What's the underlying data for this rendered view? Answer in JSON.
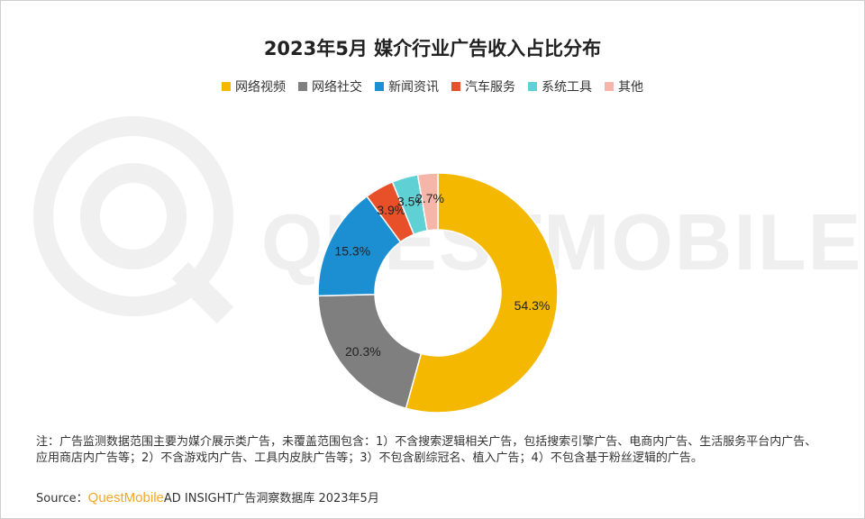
{
  "note": "注：广告监测数据范围主要为媒介展示类广告，未覆盖范围包含：1）不含搜索逻辑相关广告，包括搜索引擎广告、电商内广告、生活服务平台内广告、应用商店内广告等；2）不含游戏内广告、工具内皮肤广告等；3）不包含剧综冠名、植入广告；4）不包含基于粉丝逻辑的广告。",
  "source": {
    "prefix": "Source：",
    "brand": "QuestMobile",
    "suffix": " AD INSIGHT广告洞察数据库 2023年5月"
  },
  "watermark": {
    "text": "QUESTMOBILE"
  },
  "chart_data": {
    "type": "pie",
    "donut": true,
    "title": "2023年5月 媒介行业广告收入占比分布",
    "legend_position": "top",
    "unit": "%",
    "categories": [
      "网络视频",
      "网络社交",
      "新闻资讯",
      "汽车服务",
      "系统工具",
      "其他"
    ],
    "values": [
      54.3,
      20.3,
      15.3,
      3.9,
      3.5,
      2.7
    ],
    "labels": [
      "54.3%",
      "20.3%",
      "15.3%",
      "3.9%",
      "3.5%",
      "2.7%"
    ],
    "colors": [
      "#f5b800",
      "#7f7f7f",
      "#1b8fd2",
      "#e8502a",
      "#5fd0d3",
      "#f5b5a8"
    ]
  }
}
